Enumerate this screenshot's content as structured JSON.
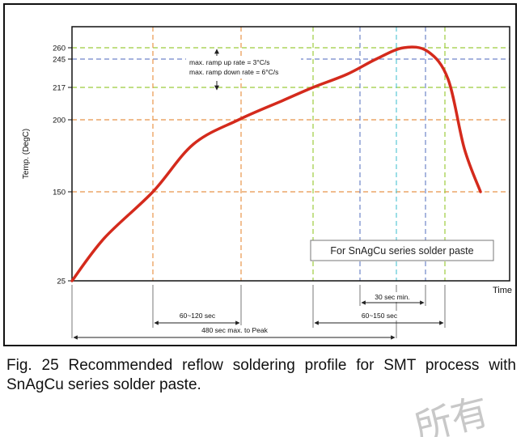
{
  "chart_data": {
    "type": "line",
    "ylabel": "Temp. (DegC)",
    "xlabel": "Time",
    "y_ticks": [
      25,
      150,
      200,
      217,
      245,
      260
    ],
    "series": [
      {
        "name": "",
        "color": "#d42a1c",
        "points": [
          [
            0,
            25
          ],
          [
            40,
            85
          ],
          [
            100,
            150
          ],
          [
            150,
            183
          ],
          [
            206,
            200
          ],
          [
            260,
            210
          ],
          [
            298,
            217
          ],
          [
            340,
            230
          ],
          [
            376,
            245
          ],
          [
            410,
            260
          ],
          [
            440,
            255
          ],
          [
            465,
            225
          ],
          [
            485,
            180
          ],
          [
            505,
            150
          ]
        ]
      }
    ],
    "annotations": {
      "ramp_up": "max. ramp up rate = 3°C/s",
      "ramp_down": "max. ramp down rate = 6°C/s",
      "box": "For SnAgCu series solder paste",
      "d1": "60~120 sec",
      "d2": "60~150 sec",
      "d3": "30 sec min.",
      "d4": "480 sec max. to Peak"
    },
    "colors": {
      "orange": "#e8954a",
      "green": "#9ccc3c",
      "blue": "#6f85c9",
      "cyan": "#5ac9d6",
      "curve": "#d42a1c"
    }
  },
  "caption": "Fig. 25 Recommended reflow soldering profile for SMT process with SnAgCu series solder paste.",
  "watermark": "所有"
}
